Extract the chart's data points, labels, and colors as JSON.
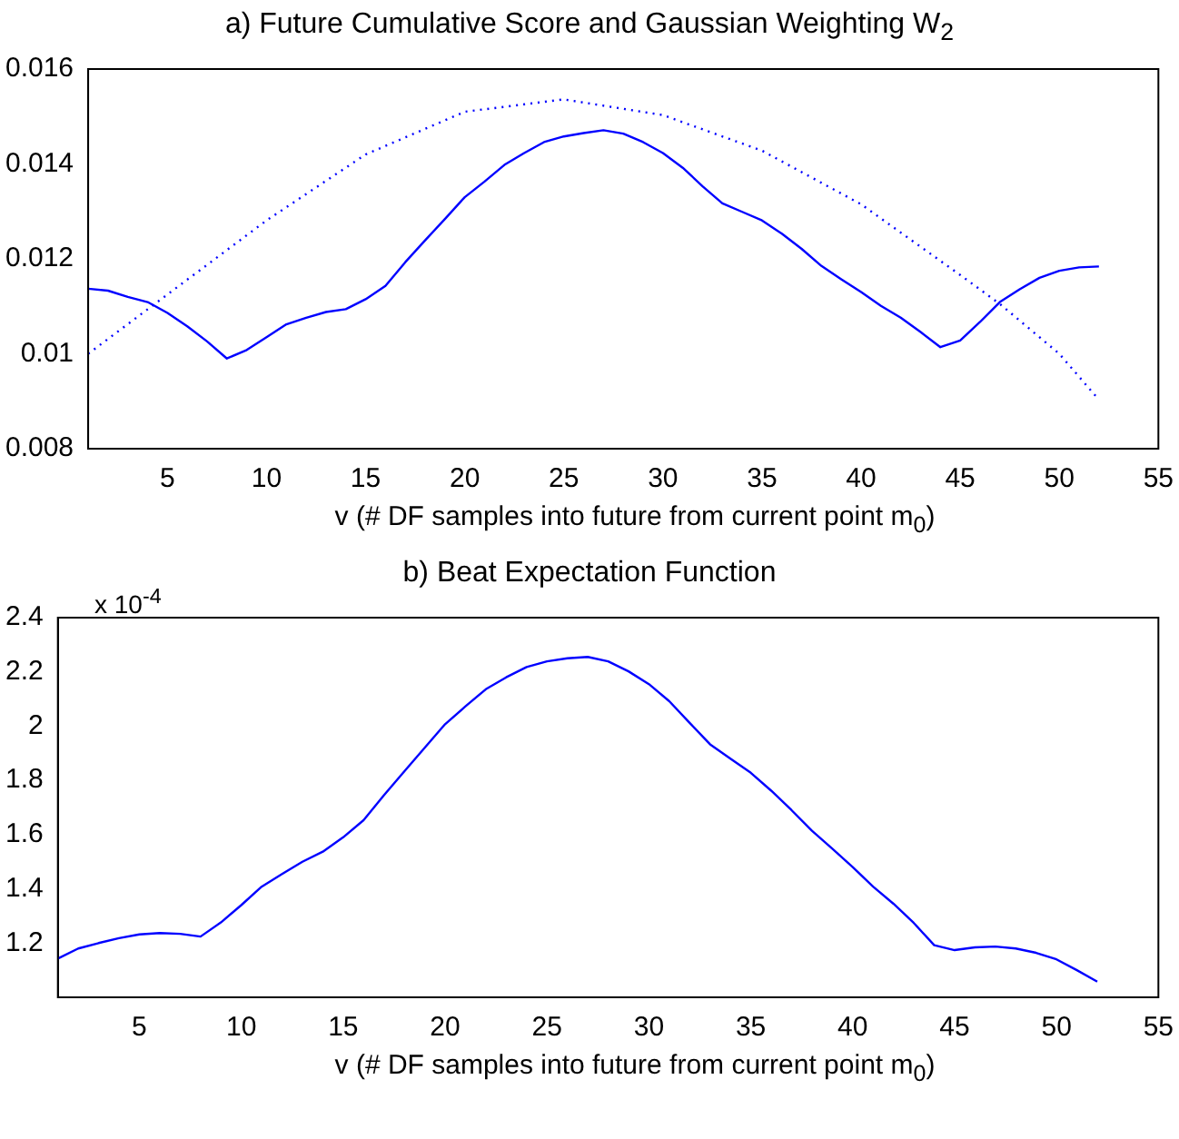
{
  "chart_data": [
    {
      "type": "line",
      "title": "a) Future Cumulative Score and Gaussian Weighting W$_{2}$",
      "xlabel": "v (# DF samples into future from current point m$_{0}$)",
      "xlim": [
        1,
        55
      ],
      "xticks": [
        5,
        10,
        15,
        20,
        25,
        30,
        35,
        40,
        45,
        50,
        55
      ],
      "ylim": [
        0.008,
        0.016
      ],
      "yticks": [
        0.008,
        0.01,
        0.012,
        0.014,
        0.016
      ],
      "marker": "none",
      "series": [
        {
          "color": "#0000ff",
          "line_style": "solid",
          "x": [
            1,
            2,
            3,
            4,
            5,
            6,
            7,
            8,
            9,
            10,
            11,
            12,
            13,
            14,
            15,
            16,
            17,
            18,
            19,
            20,
            21,
            22,
            23,
            24,
            25,
            26,
            27,
            28,
            29,
            30,
            31,
            32,
            33,
            34,
            35,
            36,
            37,
            38,
            39,
            40,
            41,
            42,
            43,
            44,
            45,
            46,
            47,
            48,
            49,
            50,
            51,
            52
          ],
          "values": [
            0.01137,
            0.01133,
            0.0112,
            0.01109,
            0.01086,
            0.01058,
            0.01026,
            0.0099,
            0.01008,
            0.01035,
            0.01062,
            0.01076,
            0.01088,
            0.01094,
            0.01115,
            0.01143,
            0.01193,
            0.01239,
            0.01284,
            0.0133,
            0.01363,
            0.01398,
            0.01423,
            0.01446,
            0.01458,
            0.01465,
            0.01471,
            0.01464,
            0.01446,
            0.01423,
            0.01392,
            0.01353,
            0.01317,
            0.01299,
            0.01281,
            0.01253,
            0.01221,
            0.01185,
            0.01157,
            0.0113,
            0.01101,
            0.01076,
            0.01046,
            0.01014,
            0.01028,
            0.01067,
            0.01109,
            0.01136,
            0.0116,
            0.01175,
            0.01182,
            0.01184
          ]
        },
        {
          "color": "#0000ff",
          "line_style": "dotted",
          "x": [
            1,
            5,
            10,
            15,
            20,
            25,
            30,
            35,
            40,
            45,
            47,
            50,
            52
          ],
          "values": [
            0.01,
            0.01125,
            0.01281,
            0.0142,
            0.0151,
            0.01536,
            0.01503,
            0.01428,
            0.01315,
            0.01166,
            0.01105,
            0.01,
            0.00903
          ]
        }
      ]
    },
    {
      "type": "line",
      "title": "b) Beat Expectation Function",
      "xlabel": "v (# DF samples into future from current point m$_{0}$)",
      "annotations": [
        "x 10$^{-4}$"
      ],
      "xlim": [
        1,
        55
      ],
      "xticks": [
        5,
        10,
        15,
        20,
        25,
        30,
        35,
        40,
        45,
        50,
        55
      ],
      "ylim": [
        1.0,
        2.4
      ],
      "yticks": [
        1.2,
        1.4,
        1.6,
        1.8,
        2,
        2.2,
        2.4
      ],
      "marker": "none",
      "series": [
        {
          "color": "#0000ff",
          "line_style": "solid",
          "x": [
            1,
            2,
            3,
            4,
            5,
            6,
            7,
            8,
            9,
            10,
            11,
            12,
            13,
            14,
            15,
            16,
            17,
            18,
            19,
            20,
            21,
            22,
            23,
            24,
            25,
            26,
            27,
            28,
            29,
            30,
            31,
            32,
            33,
            34,
            35,
            36,
            37,
            38,
            39,
            40,
            41,
            42,
            43,
            44,
            45,
            46,
            47,
            48,
            49,
            50,
            51,
            52
          ],
          "values": [
            1.143,
            1.18,
            1.2,
            1.218,
            1.232,
            1.237,
            1.234,
            1.224,
            1.276,
            1.34,
            1.408,
            1.455,
            1.5,
            1.537,
            1.59,
            1.653,
            1.745,
            1.833,
            1.92,
            2.007,
            2.073,
            2.136,
            2.18,
            2.218,
            2.239,
            2.25,
            2.255,
            2.239,
            2.202,
            2.155,
            2.092,
            2.012,
            1.933,
            1.88,
            1.828,
            1.762,
            1.69,
            1.614,
            1.548,
            1.48,
            1.408,
            1.345,
            1.274,
            1.192,
            1.174,
            1.184,
            1.187,
            1.18,
            1.164,
            1.14,
            1.1,
            1.058
          ]
        }
      ]
    }
  ]
}
